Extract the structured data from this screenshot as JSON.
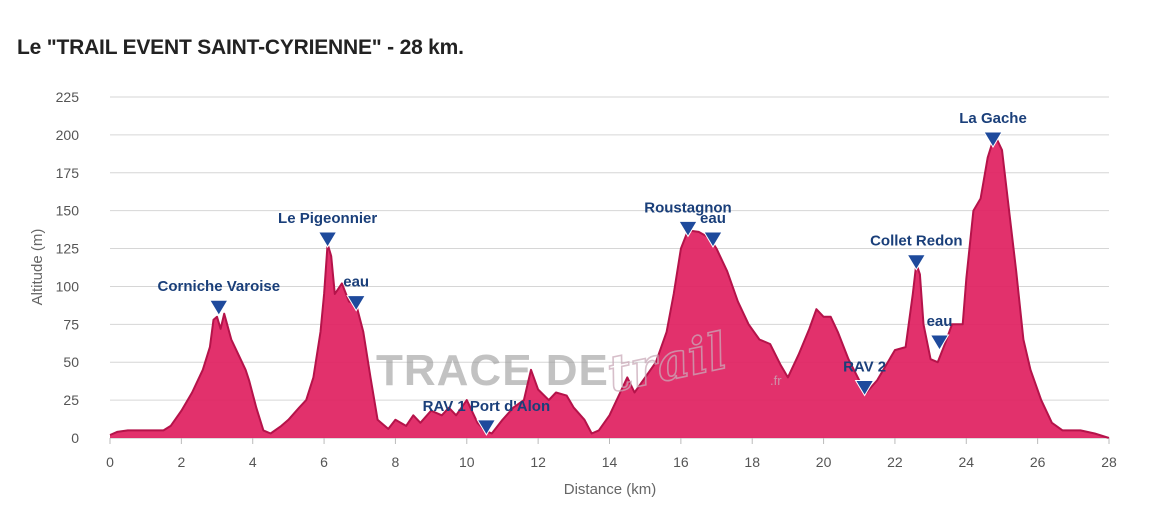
{
  "title": "Le \"TRAIL EVENT SAINT-CYRIENNE\" - 28 km.",
  "watermark": {
    "part1": "TRACE DE",
    "part2": "trail",
    "part3": ".fr"
  },
  "chart_data": {
    "type": "area",
    "title": "Le \"TRAIL EVENT SAINT-CYRIENNE\" - 28 km.",
    "xlabel": "Distance (km)",
    "ylabel": "Altitude (m)",
    "xlim": [
      0,
      28
    ],
    "ylim": [
      0,
      225
    ],
    "x_ticks": [
      0,
      2,
      4,
      6,
      8,
      10,
      12,
      14,
      16,
      18,
      20,
      22,
      24,
      26,
      28
    ],
    "y_ticks": [
      0,
      25,
      50,
      75,
      100,
      125,
      150,
      175,
      200,
      225
    ],
    "grid": "horizontal",
    "fill_color": "#e0205f",
    "line_color": "#b5134a",
    "marker_color": "#1e4a9c",
    "series": [
      {
        "points": [
          [
            0.0,
            2
          ],
          [
            0.2,
            4
          ],
          [
            0.5,
            5
          ],
          [
            1.0,
            5
          ],
          [
            1.5,
            5
          ],
          [
            1.7,
            8
          ],
          [
            2.0,
            18
          ],
          [
            2.3,
            30
          ],
          [
            2.6,
            45
          ],
          [
            2.8,
            60
          ],
          [
            2.9,
            78
          ],
          [
            3.0,
            80
          ],
          [
            3.1,
            72
          ],
          [
            3.2,
            82
          ],
          [
            3.4,
            65
          ],
          [
            3.6,
            55
          ],
          [
            3.8,
            45
          ],
          [
            3.9,
            38
          ],
          [
            4.1,
            20
          ],
          [
            4.3,
            5
          ],
          [
            4.5,
            3
          ],
          [
            4.8,
            8
          ],
          [
            5.0,
            12
          ],
          [
            5.3,
            20
          ],
          [
            5.5,
            25
          ],
          [
            5.7,
            40
          ],
          [
            5.9,
            70
          ],
          [
            6.0,
            95
          ],
          [
            6.1,
            128
          ],
          [
            6.2,
            120
          ],
          [
            6.3,
            95
          ],
          [
            6.5,
            102
          ],
          [
            6.7,
            90
          ],
          [
            6.9,
            88
          ],
          [
            7.1,
            70
          ],
          [
            7.3,
            40
          ],
          [
            7.5,
            12
          ],
          [
            7.8,
            6
          ],
          [
            8.0,
            12
          ],
          [
            8.3,
            8
          ],
          [
            8.5,
            15
          ],
          [
            8.7,
            10
          ],
          [
            9.0,
            18
          ],
          [
            9.3,
            15
          ],
          [
            9.5,
            20
          ],
          [
            9.7,
            15
          ],
          [
            10.0,
            25
          ],
          [
            10.3,
            10
          ],
          [
            10.5,
            5
          ],
          [
            10.7,
            3
          ],
          [
            11.0,
            12
          ],
          [
            11.3,
            20
          ],
          [
            11.6,
            25
          ],
          [
            11.7,
            35
          ],
          [
            11.8,
            45
          ],
          [
            12.0,
            32
          ],
          [
            12.3,
            25
          ],
          [
            12.5,
            30
          ],
          [
            12.8,
            28
          ],
          [
            13.0,
            20
          ],
          [
            13.3,
            12
          ],
          [
            13.5,
            3
          ],
          [
            13.7,
            5
          ],
          [
            14.0,
            15
          ],
          [
            14.3,
            30
          ],
          [
            14.5,
            40
          ],
          [
            14.7,
            30
          ],
          [
            15.0,
            40
          ],
          [
            15.3,
            50
          ],
          [
            15.6,
            70
          ],
          [
            15.8,
            95
          ],
          [
            16.0,
            125
          ],
          [
            16.2,
            137
          ],
          [
            16.5,
            136
          ],
          [
            16.8,
            132
          ],
          [
            17.0,
            125
          ],
          [
            17.3,
            110
          ],
          [
            17.6,
            90
          ],
          [
            17.9,
            75
          ],
          [
            18.2,
            65
          ],
          [
            18.5,
            62
          ],
          [
            18.8,
            48
          ],
          [
            19.0,
            40
          ],
          [
            19.3,
            55
          ],
          [
            19.6,
            72
          ],
          [
            19.8,
            85
          ],
          [
            20.0,
            80
          ],
          [
            20.2,
            80
          ],
          [
            20.4,
            70
          ],
          [
            20.7,
            52
          ],
          [
            21.0,
            38
          ],
          [
            21.2,
            30
          ],
          [
            21.5,
            38
          ],
          [
            21.8,
            50
          ],
          [
            22.0,
            58
          ],
          [
            22.3,
            60
          ],
          [
            22.5,
            95
          ],
          [
            22.6,
            115
          ],
          [
            22.7,
            108
          ],
          [
            22.8,
            75
          ],
          [
            23.0,
            52
          ],
          [
            23.2,
            50
          ],
          [
            23.4,
            62
          ],
          [
            23.6,
            75
          ],
          [
            23.9,
            75
          ],
          [
            24.0,
            105
          ],
          [
            24.2,
            150
          ],
          [
            24.4,
            158
          ],
          [
            24.6,
            185
          ],
          [
            24.8,
            200
          ],
          [
            25.0,
            190
          ],
          [
            25.2,
            150
          ],
          [
            25.4,
            110
          ],
          [
            25.6,
            65
          ],
          [
            25.8,
            45
          ],
          [
            26.1,
            25
          ],
          [
            26.4,
            10
          ],
          [
            26.7,
            5
          ],
          [
            27.2,
            5
          ],
          [
            27.6,
            3
          ],
          [
            28.0,
            0
          ]
        ]
      }
    ],
    "annotations": [
      {
        "label": "Corniche Varoise",
        "x": 3.05,
        "y": 85
      },
      {
        "label": "Le Pigeonnier",
        "x": 6.1,
        "y": 130
      },
      {
        "label": "eau",
        "x": 6.9,
        "y": 88
      },
      {
        "label": "RAV 1 Port d'Alon",
        "x": 10.55,
        "y": 6
      },
      {
        "label": "Roustagnon",
        "x": 16.2,
        "y": 137
      },
      {
        "label": "eau",
        "x": 16.9,
        "y": 130
      },
      {
        "label": "RAV 2",
        "x": 21.15,
        "y": 32
      },
      {
        "label": "Collet Redon",
        "x": 22.6,
        "y": 115
      },
      {
        "label": "eau",
        "x": 23.25,
        "y": 62
      },
      {
        "label": "La Gache",
        "x": 24.75,
        "y": 196
      }
    ]
  }
}
